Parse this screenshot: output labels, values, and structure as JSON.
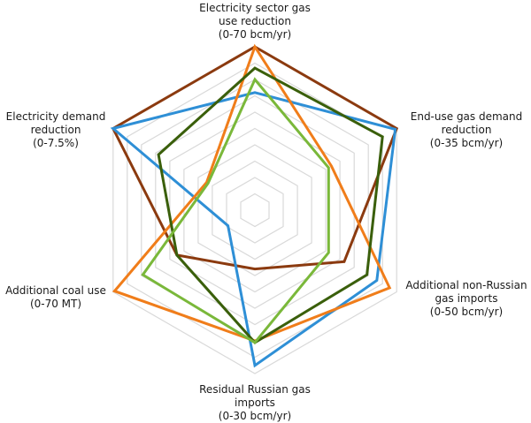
{
  "chart_data": {
    "type": "radar",
    "title": "",
    "rings": 10,
    "axes": [
      {
        "label": [
          "Electricity sector gas",
          "use reduction",
          "(0-70 bcm/yr)"
        ],
        "range": [
          0,
          70
        ],
        "unit": "bcm/yr"
      },
      {
        "label": [
          "End-use gas demand",
          "reduction",
          "(0-35 bcm/yr)"
        ],
        "range": [
          0,
          35
        ],
        "unit": "bcm/yr"
      },
      {
        "label": [
          "Additional non-Russian",
          "gas imports",
          "(0-50 bcm/yr)"
        ],
        "range": [
          0,
          50
        ],
        "unit": "bcm/yr"
      },
      {
        "label": [
          "Residual Russian gas",
          "imports",
          "(0-30 bcm/yr)"
        ],
        "range": [
          0,
          30
        ],
        "unit": "bcm/yr"
      },
      {
        "label": [
          "Additional coal use",
          "(0-70 MT)"
        ],
        "range": [
          0,
          70
        ],
        "unit": "MT"
      },
      {
        "label": [
          "Electricity demand",
          "reduction",
          "(0-7.5%)"
        ],
        "range": [
          0,
          7.5
        ],
        "unit": "%"
      }
    ],
    "series": [
      {
        "name": "brown",
        "color": "#8B3A0F",
        "normalized": [
          1.0,
          1.0,
          0.63,
          0.36,
          0.55,
          1.0
        ],
        "values": [
          70,
          35,
          31.5,
          10.8,
          38.5,
          7.5
        ]
      },
      {
        "name": "blue",
        "color": "#2E8FD6",
        "normalized": [
          0.72,
          0.99,
          0.86,
          0.95,
          0.19,
          1.0
        ],
        "values": [
          50.4,
          34.7,
          43,
          28.5,
          13.3,
          7.5
        ]
      },
      {
        "name": "orange",
        "color": "#F07D1A",
        "normalized": [
          1.0,
          0.54,
          0.95,
          0.8,
          0.99,
          0.34
        ],
        "values": [
          70,
          18.9,
          47.5,
          24,
          69.3,
          2.55
        ]
      },
      {
        "name": "dark-green",
        "color": "#3A5F0B",
        "normalized": [
          0.87,
          0.9,
          0.79,
          0.81,
          0.55,
          0.68
        ],
        "values": [
          60.9,
          31.5,
          39.5,
          24.3,
          38.5,
          5.1
        ]
      },
      {
        "name": "light-green",
        "color": "#7AB83A",
        "normalized": [
          0.8,
          0.52,
          0.52,
          0.81,
          0.79,
          0.33
        ],
        "values": [
          56,
          18.2,
          26,
          24.3,
          55.3,
          2.5
        ]
      }
    ],
    "grid": true,
    "grid_color": "#d9d9d9",
    "legend": null
  }
}
